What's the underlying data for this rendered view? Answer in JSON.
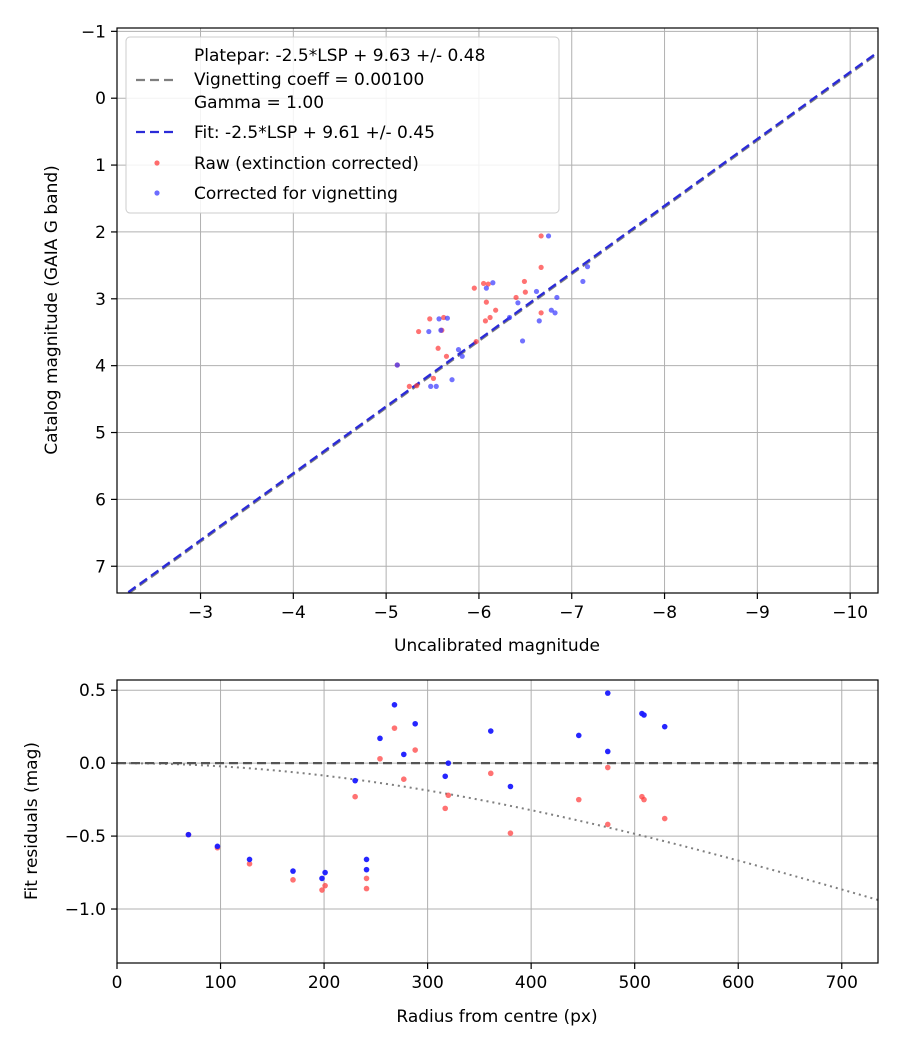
{
  "chart_data": [
    {
      "type": "scatter",
      "xlabel": "Uncalibrated magnitude",
      "ylabel": "Catalog magnitude (GAIA G band)",
      "xlim": [
        -2.1,
        -10.3
      ],
      "ylim": [
        7.4,
        -1.05
      ],
      "x_ticks": [
        -3,
        -4,
        -5,
        -6,
        -7,
        -8,
        -9,
        -10
      ],
      "x_tick_labels": [
        "−3",
        "−4",
        "−5",
        "−6",
        "−7",
        "−8",
        "−9",
        "−10"
      ],
      "y_ticks": [
        -1,
        0,
        1,
        2,
        3,
        4,
        5,
        6,
        7
      ],
      "y_tick_labels": [
        "−1",
        "0",
        "1",
        "2",
        "3",
        "4",
        "5",
        "6",
        "7"
      ],
      "grid": true,
      "legend_position": "top-left",
      "legend": [
        {
          "label_lines": [
            "Platepar: -2.5*LSP + 9.63 +/- 0.48",
            "Vignetting coeff = 0.00100",
            "Gamma = 1.00"
          ],
          "style": "dashed",
          "color": "#7f7f7f"
        },
        {
          "label_lines": [
            "Fit: -2.5*LSP + 9.61 +/- 0.45"
          ],
          "style": "dashed",
          "color": "#2b2bd8"
        },
        {
          "label_lines": [
            "Raw (extinction corrected)"
          ],
          "style": "marker",
          "color": "#ff3b3b"
        },
        {
          "label_lines": [
            "Corrected for vignetting"
          ],
          "style": "marker",
          "color": "#3b3bff"
        }
      ],
      "lines": [
        {
          "name": "Platepar",
          "slope": 1.0,
          "intercept": 9.63,
          "color": "#7f7f7f"
        },
        {
          "name": "Fit",
          "slope": 1.0,
          "intercept": 9.61,
          "color": "#2b2bd8"
        }
      ],
      "series": [
        {
          "name": "Raw (extinction corrected)",
          "color": "#ff3b3b",
          "points": [
            [
              -6.67,
              2.06
            ],
            [
              -6.67,
              2.53
            ],
            [
              -6.49,
              2.74
            ],
            [
              -6.5,
              2.9
            ],
            [
              -6.05,
              2.77
            ],
            [
              -6.1,
              2.78
            ],
            [
              -5.95,
              2.84
            ],
            [
              -6.08,
              3.05
            ],
            [
              -6.18,
              3.17
            ],
            [
              -6.12,
              3.28
            ],
            [
              -6.07,
              3.33
            ],
            [
              -6.4,
              2.98
            ],
            [
              -6.67,
              3.21
            ],
            [
              -5.47,
              3.3
            ],
            [
              -5.62,
              3.28
            ],
            [
              -5.35,
              3.49
            ],
            [
              -5.6,
              3.47
            ],
            [
              -5.56,
              3.74
            ],
            [
              -5.65,
              3.86
            ],
            [
              -5.97,
              3.64
            ],
            [
              -5.12,
              3.99
            ],
            [
              -5.51,
              4.19
            ],
            [
              -5.25,
              4.31
            ],
            [
              -5.33,
              4.3
            ]
          ]
        },
        {
          "name": "Corrected for vignetting",
          "color": "#3b3bff",
          "points": [
            [
              -6.75,
              2.06
            ],
            [
              -7.17,
              2.52
            ],
            [
              -7.12,
              2.74
            ],
            [
              -6.62,
              2.89
            ],
            [
              -6.84,
              2.98
            ],
            [
              -6.15,
              2.76
            ],
            [
              -6.08,
              2.84
            ],
            [
              -6.42,
              3.06
            ],
            [
              -6.33,
              3.28
            ],
            [
              -6.65,
              3.33
            ],
            [
              -6.78,
              3.17
            ],
            [
              -6.82,
              3.21
            ],
            [
              -5.57,
              3.3
            ],
            [
              -5.66,
              3.29
            ],
            [
              -5.46,
              3.49
            ],
            [
              -5.59,
              3.47
            ],
            [
              -6.47,
              3.63
            ],
            [
              -5.78,
              3.76
            ],
            [
              -5.82,
              3.86
            ],
            [
              -5.12,
              3.99
            ],
            [
              -5.71,
              4.21
            ],
            [
              -5.48,
              4.31
            ],
            [
              -5.54,
              4.31
            ]
          ]
        }
      ]
    },
    {
      "type": "scatter",
      "xlabel": "Radius from centre (px)",
      "ylabel": "Fit residuals (mag)",
      "xlim": [
        0,
        735
      ],
      "ylim": [
        -1.37,
        0.57
      ],
      "x_ticks": [
        0,
        100,
        200,
        300,
        400,
        500,
        600,
        700
      ],
      "x_tick_labels": [
        "0",
        "100",
        "200",
        "300",
        "400",
        "500",
        "600",
        "700"
      ],
      "y_ticks": [
        0.5,
        0.0,
        -0.5,
        -1.0
      ],
      "y_tick_labels": [
        "0.5",
        "0.0",
        "−0.5",
        "−1.0"
      ],
      "grid": true,
      "reference_line": {
        "y": 0.0,
        "style": "dashed",
        "color": "#555555"
      },
      "vignetting_curve": {
        "coeff": 0.001,
        "style": "dotted",
        "color": "#7f7f7f"
      },
      "series": [
        {
          "name": "Raw (extinction corrected)",
          "color": "#ff3b3b",
          "points": [
            [
              69,
              -0.49
            ],
            [
              97,
              -0.58
            ],
            [
              128,
              -0.69
            ],
            [
              170,
              -0.8
            ],
            [
              198,
              -0.87
            ],
            [
              201,
              -0.84
            ],
            [
              241,
              -0.79
            ],
            [
              241,
              -0.86
            ],
            [
              230,
              -0.23
            ],
            [
              254,
              0.03
            ],
            [
              268,
              0.24
            ],
            [
              277,
              -0.11
            ],
            [
              288,
              0.09
            ],
            [
              317,
              -0.31
            ],
            [
              320,
              -0.22
            ],
            [
              361,
              -0.07
            ],
            [
              380,
              -0.48
            ],
            [
              446,
              -0.25
            ],
            [
              474,
              -0.03
            ],
            [
              474,
              -0.42
            ],
            [
              507,
              -0.23
            ],
            [
              509,
              -0.25
            ],
            [
              529,
              -0.38
            ]
          ]
        },
        {
          "name": "Corrected for vignetting",
          "color": "#1a1aff",
          "points": [
            [
              69,
              -0.49
            ],
            [
              97,
              -0.57
            ],
            [
              128,
              -0.66
            ],
            [
              170,
              -0.74
            ],
            [
              198,
              -0.79
            ],
            [
              201,
              -0.75
            ],
            [
              241,
              -0.66
            ],
            [
              241,
              -0.73
            ],
            [
              230,
              -0.12
            ],
            [
              254,
              0.17
            ],
            [
              268,
              0.4
            ],
            [
              277,
              0.06
            ],
            [
              288,
              0.27
            ],
            [
              317,
              -0.09
            ],
            [
              320,
              0.0
            ],
            [
              361,
              0.22
            ],
            [
              380,
              -0.16
            ],
            [
              446,
              0.19
            ],
            [
              474,
              0.48
            ],
            [
              474,
              0.08
            ],
            [
              507,
              0.34
            ],
            [
              509,
              0.33
            ],
            [
              529,
              0.25
            ]
          ]
        }
      ]
    }
  ]
}
